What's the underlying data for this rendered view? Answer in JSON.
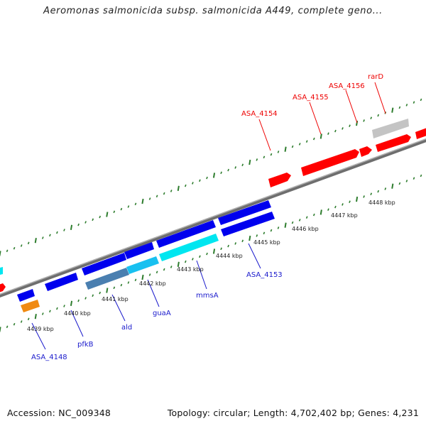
{
  "title": "Aeromonas salmonicida subsp. salmonicida A449, complete geno...",
  "footer": {
    "accession": "Accession: NC_009348",
    "summary": "Topology: circular; Length: 4,702,402 bp; Genes: 4,231"
  },
  "colors": {
    "backbone": "#808080",
    "tick": "#2e7d2e",
    "forward_gene": "#ff0000",
    "forward_label": "#ee0000",
    "reverse_gene": "#0000ee",
    "reverse_label": "#1a1acc",
    "cyan_gene": "#00e6f0",
    "steel_gene": "#4a7fb0",
    "orange_gene": "#f08a12",
    "gray_gene": "#c0c0c0"
  },
  "scale_labels": [
    "4439 kbp",
    "4440 kbp",
    "4441 kbp",
    "4442 kbp",
    "4443 kbp",
    "4444 kbp",
    "4445 kbp",
    "4446 kbp",
    "4447 kbp",
    "4448 kbp"
  ],
  "forward_labels": [
    "ASA_4154",
    "ASA_4155",
    "ASA_4156",
    "rarD"
  ],
  "reverse_labels": [
    "ASA_4148",
    "pfkB",
    "ald",
    "guaA",
    "mmsA",
    "ASA_4153"
  ]
}
